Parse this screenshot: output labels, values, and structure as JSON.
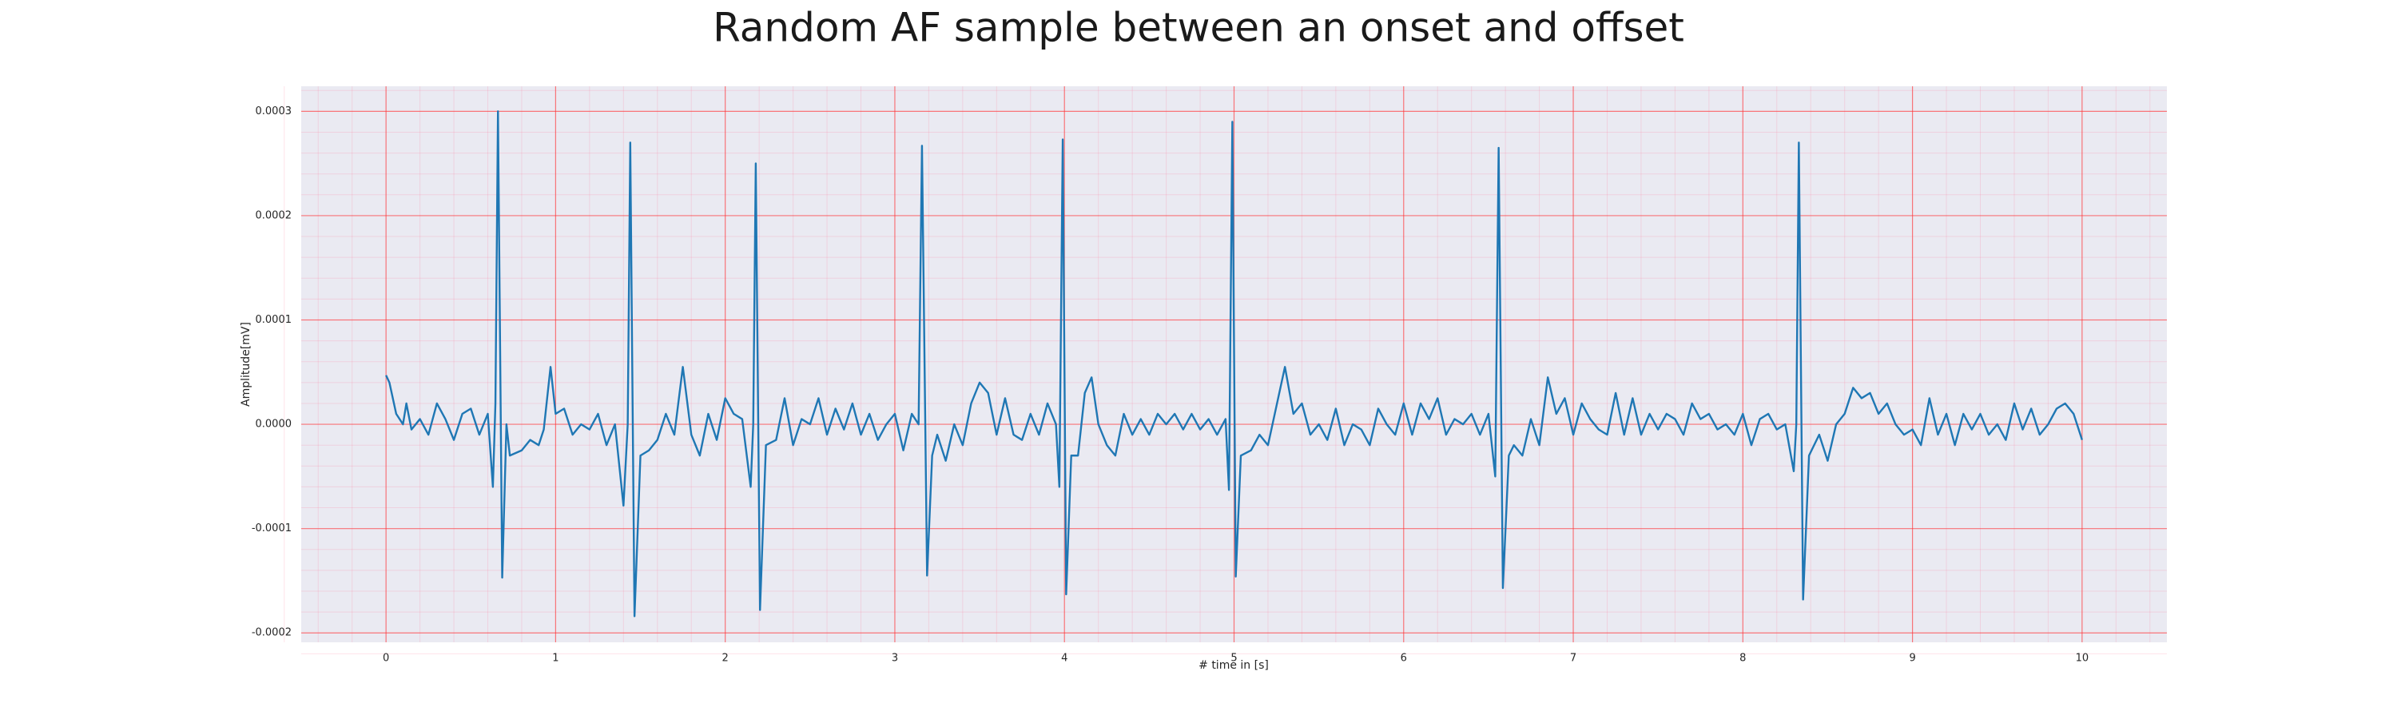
{
  "chart_data": {
    "type": "line",
    "title": "Random AF sample between an onset and offset",
    "xlabel": "# time in [s]",
    "ylabel": "Amplitude[mV]",
    "color": "#1f77b4",
    "grid": true,
    "minor_grid": true,
    "xlim": [
      -0.5,
      10.5
    ],
    "ylim": [
      -0.000209,
      0.000324
    ],
    "xticks": [
      0,
      1,
      2,
      3,
      4,
      5,
      6,
      7,
      8,
      9,
      10
    ],
    "yticks": [
      -0.0002,
      -0.0001,
      {
        "value": 0,
        "label": "0.0000"
      },
      0.0001,
      0.0002,
      0.0003
    ],
    "x": [
      0,
      0.02,
      0.06,
      0.1,
      0.12,
      0.15,
      0.2,
      0.25,
      0.3,
      0.35,
      0.4,
      0.45,
      0.5,
      0.55,
      0.6,
      0.63,
      0.645,
      0.66,
      0.685,
      0.71,
      0.73,
      0.8,
      0.85,
      0.9,
      0.93,
      0.97,
      1.0,
      1.05,
      1.1,
      1.15,
      1.2,
      1.25,
      1.3,
      1.35,
      1.4,
      1.425,
      1.44,
      1.465,
      1.5,
      1.55,
      1.6,
      1.65,
      1.7,
      1.75,
      1.8,
      1.85,
      1.9,
      1.95,
      2.0,
      2.05,
      2.1,
      2.15,
      2.165,
      2.18,
      2.205,
      2.24,
      2.3,
      2.35,
      2.4,
      2.45,
      2.5,
      2.55,
      2.6,
      2.65,
      2.7,
      2.75,
      2.8,
      2.85,
      2.9,
      2.95,
      3.0,
      3.05,
      3.1,
      3.14,
      3.16,
      3.19,
      3.22,
      3.25,
      3.3,
      3.35,
      3.4,
      3.45,
      3.5,
      3.55,
      3.6,
      3.65,
      3.7,
      3.75,
      3.8,
      3.85,
      3.9,
      3.95,
      3.97,
      3.99,
      4.01,
      4.04,
      4.08,
      4.12,
      4.16,
      4.2,
      4.25,
      4.3,
      4.35,
      4.4,
      4.45,
      4.5,
      4.55,
      4.6,
      4.65,
      4.7,
      4.75,
      4.8,
      4.85,
      4.9,
      4.95,
      4.97,
      4.99,
      5.01,
      5.04,
      5.1,
      5.15,
      5.2,
      5.3,
      5.35,
      5.4,
      5.45,
      5.5,
      5.55,
      5.6,
      5.65,
      5.7,
      5.75,
      5.8,
      5.85,
      5.9,
      5.95,
      6.0,
      6.05,
      6.1,
      6.15,
      6.2,
      6.25,
      6.3,
      6.35,
      6.4,
      6.45,
      6.5,
      6.54,
      6.56,
      6.585,
      6.62,
      6.65,
      6.7,
      6.75,
      6.8,
      6.85,
      6.9,
      6.95,
      7.0,
      7.05,
      7.1,
      7.15,
      7.2,
      7.25,
      7.3,
      7.35,
      7.4,
      7.45,
      7.5,
      7.55,
      7.6,
      7.65,
      7.7,
      7.75,
      7.8,
      7.85,
      7.9,
      7.95,
      8.0,
      8.05,
      8.1,
      8.15,
      8.2,
      8.25,
      8.3,
      8.315,
      8.33,
      8.355,
      8.39,
      8.45,
      8.5,
      8.55,
      8.6,
      8.65,
      8.7,
      8.75,
      8.8,
      8.85,
      8.9,
      8.95,
      9.0,
      9.05,
      9.1,
      9.15,
      9.2,
      9.25,
      9.3,
      9.35,
      9.4,
      9.45,
      9.5,
      9.55,
      9.6,
      9.65,
      9.7,
      9.75,
      9.8,
      9.85,
      9.9,
      9.95,
      10.0
    ],
    "values": [
      4.7e-05,
      4e-05,
      1e-05,
      0,
      2e-05,
      -5e-06,
      5e-06,
      -1e-05,
      2e-05,
      5e-06,
      -1.5e-05,
      1e-05,
      1.5e-05,
      -1e-05,
      1e-05,
      -6e-05,
      2e-05,
      0.0003,
      -0.000147,
      0,
      -3e-05,
      -2.5e-05,
      -1.5e-05,
      -2e-05,
      -5e-06,
      5.5e-05,
      1e-05,
      1.5e-05,
      -1e-05,
      0,
      -5e-06,
      1e-05,
      -2e-05,
      0,
      -7.8e-05,
      0,
      0.00027,
      -0.000184,
      -3e-05,
      -2.5e-05,
      -1.5e-05,
      1e-05,
      -1e-05,
      5.5e-05,
      -1e-05,
      -3e-05,
      1e-05,
      -1.5e-05,
      2.5e-05,
      1e-05,
      5e-06,
      -6e-05,
      0,
      0.00025,
      -0.000178,
      -2e-05,
      -1.5e-05,
      2.5e-05,
      -2e-05,
      5e-06,
      0,
      2.5e-05,
      -1e-05,
      1.5e-05,
      -5e-06,
      2e-05,
      -1e-05,
      1e-05,
      -1.5e-05,
      0,
      1e-05,
      -2.5e-05,
      1e-05,
      0,
      0.000267,
      -0.000145,
      -3e-05,
      -1e-05,
      -3.5e-05,
      0,
      -2e-05,
      2e-05,
      4e-05,
      3e-05,
      -1e-05,
      2.5e-05,
      -1e-05,
      -1.5e-05,
      1e-05,
      -1e-05,
      2e-05,
      0,
      -6e-05,
      0.000273,
      -0.000163,
      -3e-05,
      -3e-05,
      3e-05,
      4.5e-05,
      0,
      -2e-05,
      -3e-05,
      1e-05,
      -1e-05,
      5e-06,
      -1e-05,
      1e-05,
      0,
      1e-05,
      -5e-06,
      1e-05,
      -5e-06,
      5e-06,
      -1e-05,
      5e-06,
      -6.3e-05,
      0.00029,
      -0.000146,
      -3e-05,
      -2.5e-05,
      -1e-05,
      -2e-05,
      5.5e-05,
      1e-05,
      2e-05,
      -1e-05,
      0,
      -1.5e-05,
      1.5e-05,
      -2e-05,
      0,
      -5e-06,
      -2e-05,
      1.5e-05,
      0,
      -1e-05,
      2e-05,
      -1e-05,
      2e-05,
      5e-06,
      2.5e-05,
      -1e-05,
      5e-06,
      0,
      1e-05,
      -1e-05,
      1e-05,
      -5e-05,
      0.000265,
      -0.000157,
      -3e-05,
      -2e-05,
      -3e-05,
      5e-06,
      -2e-05,
      4.5e-05,
      1e-05,
      2.5e-05,
      -1e-05,
      2e-05,
      5e-06,
      -5e-06,
      -1e-05,
      3e-05,
      -1e-05,
      2.5e-05,
      -1e-05,
      1e-05,
      -5e-06,
      1e-05,
      5e-06,
      -1e-05,
      2e-05,
      5e-06,
      1e-05,
      -5e-06,
      0,
      -1e-05,
      1e-05,
      -2e-05,
      5e-06,
      1e-05,
      -5e-06,
      0,
      -4.5e-05,
      0,
      0.00027,
      -0.000168,
      -3e-05,
      -1e-05,
      -3.5e-05,
      0,
      1e-05,
      3.5e-05,
      2.5e-05,
      3e-05,
      1e-05,
      2e-05,
      0,
      -1e-05,
      -5e-06,
      -2e-05,
      2.5e-05,
      -1e-05,
      1e-05,
      -2e-05,
      1e-05,
      -5e-06,
      1e-05,
      -1e-05,
      0,
      -1.5e-05,
      2e-05,
      -5e-06,
      1.5e-05,
      -1e-05,
      0,
      1.5e-05,
      2e-05,
      1e-05,
      -1.5e-05
    ]
  }
}
